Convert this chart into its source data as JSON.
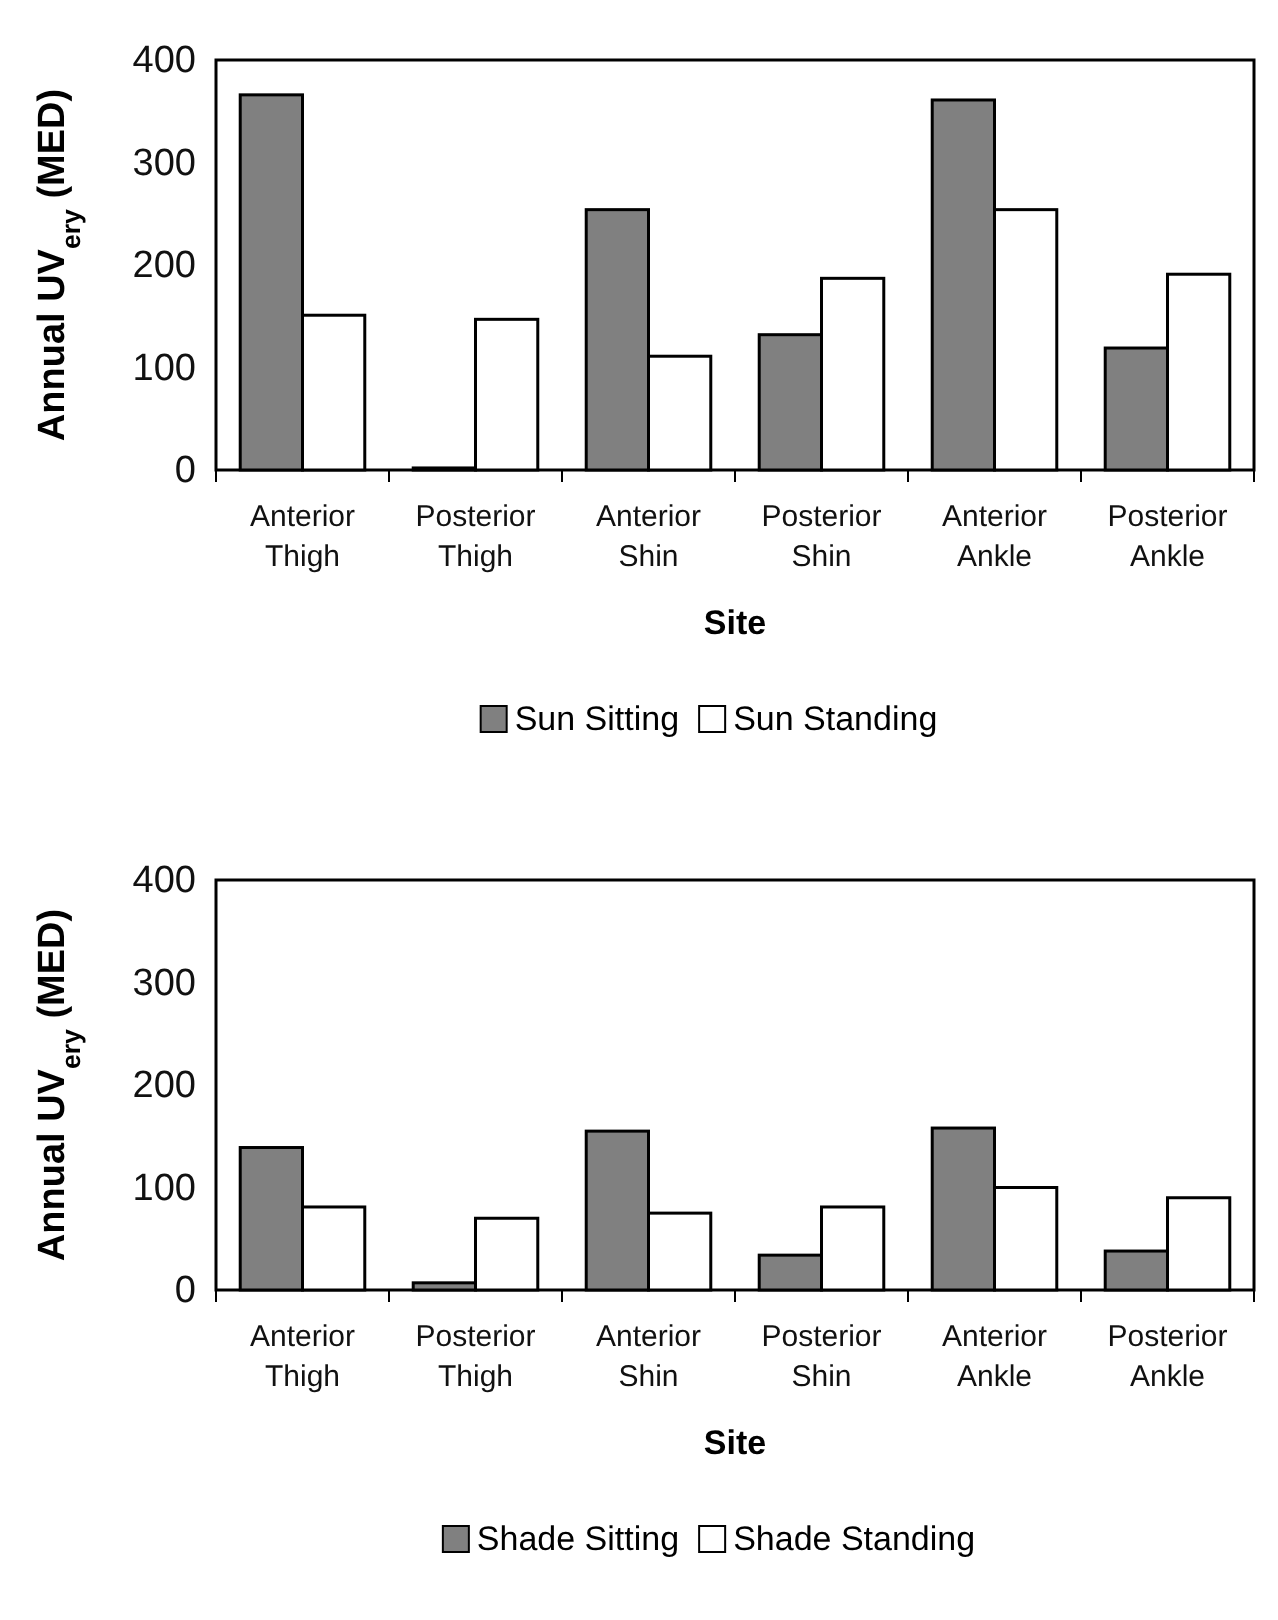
{
  "chart_data": [
    {
      "type": "bar",
      "xlabel": "Site",
      "ylabel": "Annual UV$_{ery}$ (MED)",
      "categories": [
        "Anterior Thigh",
        "Posterior Thigh",
        "Anterior Shin",
        "Posterior Shin",
        "Anterior Ankle",
        "Posterior Ankle"
      ],
      "series": [
        {
          "name": "Sun Sitting",
          "color": "#808080",
          "values": [
            366,
            2,
            254,
            132,
            361,
            119
          ]
        },
        {
          "name": "Sun Standing",
          "color": "#ffffff",
          "values": [
            151,
            147,
            111,
            187,
            254,
            191
          ]
        }
      ],
      "ylim": [
        0,
        400
      ],
      "yticks": [
        0,
        100,
        200,
        300,
        400
      ],
      "grid": false,
      "legend": "bottom"
    },
    {
      "type": "bar",
      "xlabel": "Site",
      "ylabel": "Annual UV$_{ery}$ (MED)",
      "categories": [
        "Anterior Thigh",
        "Posterior Thigh",
        "Anterior Shin",
        "Posterior Shin",
        "Anterior Ankle",
        "Posterior Ankle"
      ],
      "series": [
        {
          "name": "Shade Sitting",
          "color": "#808080",
          "values": [
            139,
            7,
            155,
            34,
            158,
            38
          ]
        },
        {
          "name": "Shade Standing",
          "color": "#ffffff",
          "values": [
            81,
            70,
            75,
            81,
            100,
            90
          ]
        }
      ],
      "ylim": [
        0,
        400
      ],
      "yticks": [
        0,
        100,
        200,
        300,
        400
      ],
      "grid": false,
      "legend": "bottom"
    }
  ]
}
